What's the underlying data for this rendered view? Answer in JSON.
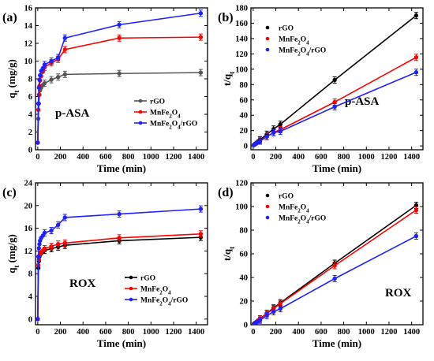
{
  "chart_data": [
    {
      "type": "line",
      "panel_label": "(a)",
      "annotation": "p-ASA",
      "xlabel": "Time (min)",
      "ylabel": "q_t (mg/g)",
      "xlim": [
        -20,
        1500
      ],
      "ylim": [
        0,
        16
      ],
      "xticks": [
        0,
        200,
        400,
        600,
        800,
        1000,
        1200,
        1400
      ],
      "yticks": [
        0,
        2,
        4,
        6,
        8,
        10,
        12,
        14,
        16
      ],
      "legend_position": "right",
      "x": [
        0,
        5,
        10,
        15,
        20,
        30,
        45,
        60,
        120,
        180,
        240,
        720,
        1440
      ],
      "series": [
        {
          "name": "rGO",
          "color": "#555555",
          "values": [
            0.8,
            3.5,
            5.2,
            6.2,
            6.7,
            7.0,
            7.3,
            7.5,
            7.9,
            8.2,
            8.5,
            8.6,
            8.7
          ]
        },
        {
          "name": "MnFe2O4",
          "color": "#ff0000",
          "values": [
            0.8,
            4.5,
            6.2,
            7.2,
            7.8,
            8.3,
            8.8,
            9.3,
            9.8,
            10.2,
            11.3,
            12.6,
            12.7
          ]
        },
        {
          "name": "MnFe2O4/rGO",
          "color": "#1f1fff",
          "values": [
            0.8,
            5.2,
            7.0,
            7.9,
            8.4,
            8.9,
            9.2,
            9.6,
            10.0,
            10.4,
            12.6,
            14.1,
            15.4
          ]
        }
      ]
    },
    {
      "type": "line",
      "panel_label": "(b)",
      "annotation": "p-ASA",
      "xlabel": "Time (min)",
      "ylabel": "t/q_t",
      "xlim": [
        -20,
        1500
      ],
      "ylim": [
        -5,
        180
      ],
      "xticks": [
        0,
        200,
        400,
        600,
        800,
        1000,
        1200,
        1400
      ],
      "yticks": [
        0,
        20,
        40,
        60,
        80,
        100,
        120,
        140,
        160,
        180
      ],
      "legend_position": "top-left",
      "x": [
        5,
        10,
        15,
        20,
        30,
        45,
        60,
        120,
        180,
        240,
        720,
        1440
      ],
      "series": [
        {
          "name": "rGO",
          "color": "#000000",
          "values": [
            1.4,
            1.9,
            2.4,
            3.0,
            4.3,
            6.2,
            8.0,
            15.2,
            22.0,
            28.2,
            86.0,
            170.0
          ]
        },
        {
          "name": "MnFe2O4",
          "color": "#ff0000",
          "values": [
            1.1,
            1.6,
            2.1,
            2.6,
            3.6,
            5.1,
            6.5,
            12.2,
            17.6,
            21.2,
            57.2,
            115.5
          ]
        },
        {
          "name": "MnFe2O4/rGO",
          "color": "#1f1fff",
          "values": [
            1.0,
            1.4,
            1.9,
            2.4,
            3.4,
            4.9,
            6.3,
            12.0,
            17.3,
            19.0,
            51.0,
            96.0
          ]
        }
      ]
    },
    {
      "type": "line",
      "panel_label": "(c)",
      "annotation": "ROX",
      "xlabel": "Time (min)",
      "ylabel": "q_t (mg/g)",
      "xlim": [
        -20,
        1500
      ],
      "ylim": [
        -1,
        24
      ],
      "xticks": [
        0,
        200,
        400,
        600,
        800,
        1000,
        1200,
        1400
      ],
      "yticks": [
        0,
        4,
        8,
        12,
        16,
        20,
        24
      ],
      "legend_position": "bottom-right",
      "x": [
        0,
        5,
        10,
        15,
        20,
        30,
        45,
        60,
        120,
        180,
        240,
        720,
        1440
      ],
      "series": [
        {
          "name": "rGO",
          "color": "#000000",
          "values": [
            0,
            9.0,
            10.2,
            11.0,
            11.3,
            11.6,
            11.9,
            12.1,
            12.4,
            12.7,
            13.0,
            13.8,
            14.4
          ]
        },
        {
          "name": "MnFe2O4",
          "color": "#ff0000",
          "values": [
            0,
            9.5,
            10.5,
            11.2,
            11.5,
            11.8,
            12.1,
            12.4,
            12.8,
            13.2,
            13.4,
            14.3,
            15.0
          ]
        },
        {
          "name": "MnFe2O4/rGO",
          "color": "#1f1fff",
          "values": [
            0,
            11.0,
            12.5,
            13.2,
            13.8,
            14.3,
            14.7,
            15.2,
            15.6,
            16.6,
            17.9,
            18.5,
            19.4
          ]
        }
      ]
    },
    {
      "type": "line",
      "panel_label": "(d)",
      "annotation": "ROX",
      "xlabel": "Time (min)",
      "ylabel": "t/q_t",
      "xlim": [
        -20,
        1500
      ],
      "ylim": [
        0,
        120
      ],
      "xticks": [
        0,
        200,
        400,
        600,
        800,
        1000,
        1200,
        1400
      ],
      "yticks": [
        0,
        20,
        40,
        60,
        80,
        100,
        120
      ],
      "legend_position": "top-left",
      "x": [
        5,
        10,
        15,
        20,
        30,
        45,
        60,
        120,
        180,
        240,
        720,
        1440
      ],
      "series": [
        {
          "name": "rGO",
          "color": "#000000",
          "values": [
            0.6,
            1.0,
            1.4,
            1.8,
            2.6,
            3.8,
            5.0,
            9.7,
            14.2,
            18.5,
            52.0,
            101.0
          ]
        },
        {
          "name": "MnFe2O4",
          "color": "#ff0000",
          "values": [
            0.5,
            1.0,
            1.3,
            1.7,
            2.5,
            3.7,
            4.8,
            9.4,
            13.6,
            17.9,
            50.0,
            97.0
          ]
        },
        {
          "name": "MnFe2O4/rGO",
          "color": "#1f1fff",
          "values": [
            0.5,
            0.8,
            1.1,
            1.5,
            2.1,
            3.1,
            3.9,
            7.7,
            11.0,
            13.6,
            39.0,
            75.0
          ]
        }
      ]
    }
  ]
}
